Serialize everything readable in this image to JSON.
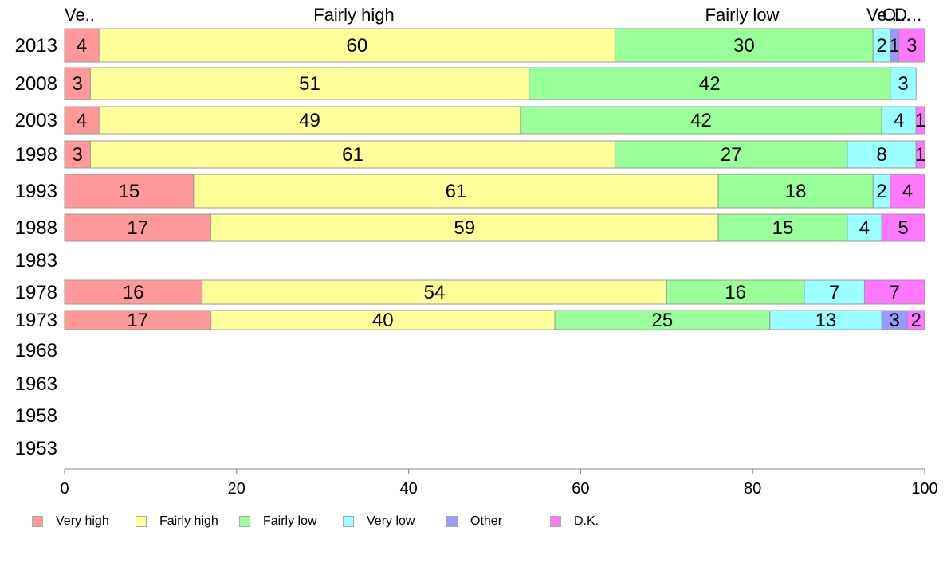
{
  "chart_data": {
    "type": "bar",
    "orientation": "horizontal",
    "stacked": true,
    "categories": [
      "2013",
      "2008",
      "2003",
      "1998",
      "1993",
      "1988",
      "1983",
      "1978",
      "1973",
      "1968",
      "1963",
      "1958",
      "1953"
    ],
    "series": [
      {
        "name": "Very high",
        "color": "#ff9999",
        "values": [
          4,
          3,
          4,
          3,
          15,
          17,
          null,
          16,
          17,
          null,
          null,
          null,
          null
        ]
      },
      {
        "name": "Fairly high",
        "color": "#ffff99",
        "values": [
          60,
          51,
          49,
          61,
          61,
          59,
          null,
          54,
          40,
          null,
          null,
          null,
          null
        ]
      },
      {
        "name": "Fairly low",
        "color": "#99ff99",
        "values": [
          30,
          42,
          42,
          27,
          18,
          15,
          null,
          16,
          25,
          null,
          null,
          null,
          null
        ]
      },
      {
        "name": "Very low",
        "color": "#99ffff",
        "values": [
          2,
          3,
          4,
          8,
          2,
          4,
          null,
          7,
          13,
          null,
          null,
          null,
          null
        ]
      },
      {
        "name": "Other",
        "color": "#9999ff",
        "values": [
          1,
          0,
          0,
          0,
          0,
          0,
          null,
          0,
          3,
          null,
          null,
          null,
          null
        ]
      },
      {
        "name": "D.K.",
        "color": "#ff77ff",
        "values": [
          3,
          0,
          1,
          1,
          4,
          5,
          null,
          7,
          2,
          null,
          null,
          null,
          null
        ]
      }
    ],
    "top_labels": [
      "Ve..",
      "Fairly high",
      "Fairly low",
      "Ve...",
      "O...",
      "D..."
    ],
    "xlim": [
      0,
      100
    ],
    "xticks": [
      0,
      20,
      40,
      60,
      80,
      100
    ],
    "grid": false,
    "legend_position": "bottom"
  }
}
